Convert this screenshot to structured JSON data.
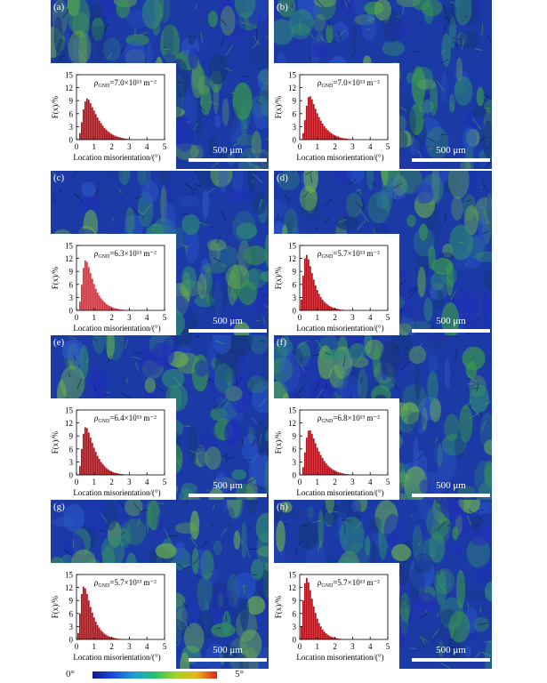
{
  "figure": {
    "scale_bar_label": "500 μm",
    "colorbar": {
      "min_label": "0°",
      "max_label": "5°"
    },
    "map_colors": [
      "#1f2fb7",
      "#2b55c6",
      "#16367e",
      "#2f8a72",
      "#3a9b4a",
      "#6db24a"
    ]
  },
  "chart_data": [
    {
      "type": "bar",
      "panel": "(a)",
      "density_label": "7.0×10¹³ m⁻²",
      "xlabel": "Location misorientation/(°)",
      "ylabel": "F(x)/%",
      "xlim": [
        0,
        5
      ],
      "ylim": [
        0,
        15
      ],
      "xticks": [
        "0",
        "1",
        "2",
        "3",
        "4",
        "5"
      ],
      "yticks": [
        "0",
        "3",
        "6",
        "9",
        "12",
        "15"
      ],
      "bar_color": "#b5121b",
      "bins": [
        0.2,
        0.3,
        0.4,
        0.5,
        0.6,
        0.7,
        0.8,
        0.9,
        1.0,
        1.1,
        1.2,
        1.3,
        1.4,
        1.5,
        1.6,
        1.7,
        1.8,
        1.9,
        2.0,
        2.1,
        2.2,
        2.3,
        2.4,
        2.5,
        2.6,
        2.7,
        2.8,
        2.9,
        3.0
      ],
      "values": [
        1.5,
        4.0,
        7.0,
        8.8,
        9.5,
        9.2,
        8.4,
        7.5,
        6.7,
        5.9,
        5.1,
        4.4,
        3.8,
        3.2,
        2.7,
        2.3,
        1.9,
        1.6,
        1.3,
        1.1,
        0.9,
        0.7,
        0.6,
        0.5,
        0.4,
        0.3,
        0.2,
        0.15,
        0.1
      ]
    },
    {
      "type": "bar",
      "panel": "(b)",
      "density_label": "7.0×10¹³ m⁻²",
      "xlabel": "Location misorientation/(°)",
      "ylabel": "F(x)/%",
      "xlim": [
        0,
        5
      ],
      "ylim": [
        0,
        15
      ],
      "xticks": [
        "0",
        "1",
        "2",
        "3",
        "4",
        "5"
      ],
      "yticks": [
        "0",
        "3",
        "6",
        "9",
        "12",
        "15"
      ],
      "bar_color": "#b5121b",
      "bins": [
        0.2,
        0.3,
        0.4,
        0.5,
        0.6,
        0.7,
        0.8,
        0.9,
        1.0,
        1.1,
        1.2,
        1.3,
        1.4,
        1.5,
        1.6,
        1.7,
        1.8,
        1.9,
        2.0,
        2.1,
        2.2,
        2.3,
        2.4,
        2.5,
        2.6,
        2.7,
        2.8,
        2.9,
        3.0
      ],
      "values": [
        1.5,
        4.5,
        7.8,
        9.8,
        10.0,
        9.3,
        8.2,
        7.1,
        6.1,
        5.2,
        4.4,
        3.7,
        3.1,
        2.6,
        2.2,
        1.8,
        1.5,
        1.2,
        1.0,
        0.8,
        0.7,
        0.5,
        0.4,
        0.3,
        0.3,
        0.2,
        0.15,
        0.1,
        0.1
      ]
    },
    {
      "type": "bar",
      "panel": "(c)",
      "density_label": "6.3×10¹³ m⁻²",
      "xlabel": "Location misorientation/(°)",
      "ylabel": "F(x)/%",
      "xlim": [
        0,
        5
      ],
      "ylim": [
        0,
        15
      ],
      "xticks": [
        "0",
        "1",
        "2",
        "3",
        "4",
        "5"
      ],
      "yticks": [
        "0",
        "3",
        "6",
        "9",
        "12",
        "15"
      ],
      "bar_color": "#e0303d",
      "bins": [
        0.2,
        0.3,
        0.4,
        0.5,
        0.6,
        0.7,
        0.8,
        0.9,
        1.0,
        1.1,
        1.2,
        1.3,
        1.4,
        1.5,
        1.6,
        1.7,
        1.8,
        1.9,
        2.0,
        2.1,
        2.2,
        2.3,
        2.4,
        2.5,
        2.6,
        2.7,
        2.8
      ],
      "values": [
        2.0,
        6.0,
        9.8,
        11.5,
        11.2,
        10.0,
        8.6,
        7.3,
        6.1,
        5.0,
        4.1,
        3.4,
        2.8,
        2.3,
        1.9,
        1.5,
        1.2,
        1.0,
        0.8,
        0.6,
        0.5,
        0.4,
        0.3,
        0.2,
        0.2,
        0.1,
        0.1
      ]
    },
    {
      "type": "bar",
      "panel": "(d)",
      "density_label": "5.7×10¹³ m⁻²",
      "xlabel": "Location misorientation/(°)",
      "ylabel": "F(x)/%",
      "xlim": [
        0,
        5
      ],
      "ylim": [
        0,
        15
      ],
      "xticks": [
        "0",
        "1",
        "2",
        "3",
        "4",
        "5"
      ],
      "yticks": [
        "0",
        "3",
        "6",
        "9",
        "12",
        "15"
      ],
      "bar_color": "#b5121b",
      "bins": [
        0.1,
        0.2,
        0.3,
        0.4,
        0.5,
        0.6,
        0.7,
        0.8,
        0.9,
        1.0,
        1.1,
        1.2,
        1.3,
        1.4,
        1.5,
        1.6,
        1.7,
        1.8,
        1.9,
        2.0,
        2.1,
        2.2,
        2.3,
        2.4,
        2.5
      ],
      "values": [
        2.5,
        8.0,
        12.0,
        12.8,
        11.8,
        10.2,
        8.6,
        7.1,
        5.8,
        4.7,
        3.8,
        3.1,
        2.5,
        2.0,
        1.6,
        1.3,
        1.0,
        0.8,
        0.6,
        0.5,
        0.4,
        0.3,
        0.2,
        0.15,
        0.1
      ]
    },
    {
      "type": "bar",
      "panel": "(e)",
      "density_label": "6.4×10¹³ m⁻²",
      "xlabel": "Location misorientation/(°)",
      "ylabel": "F(x)/%",
      "xlim": [
        0,
        5
      ],
      "ylim": [
        0,
        15
      ],
      "xticks": [
        "0",
        "1",
        "2",
        "3",
        "4",
        "5"
      ],
      "yticks": [
        "0",
        "3",
        "6",
        "9",
        "12",
        "15"
      ],
      "bar_color": "#b5121b",
      "bins": [
        0.2,
        0.3,
        0.4,
        0.5,
        0.6,
        0.7,
        0.8,
        0.9,
        1.0,
        1.1,
        1.2,
        1.3,
        1.4,
        1.5,
        1.6,
        1.7,
        1.8,
        1.9,
        2.0,
        2.1,
        2.2,
        2.3,
        2.4,
        2.5,
        2.6,
        2.7,
        2.8
      ],
      "values": [
        2.0,
        6.0,
        9.5,
        11.0,
        10.8,
        9.8,
        8.6,
        7.4,
        6.3,
        5.3,
        4.4,
        3.7,
        3.0,
        2.5,
        2.0,
        1.6,
        1.3,
        1.0,
        0.8,
        0.6,
        0.5,
        0.4,
        0.3,
        0.2,
        0.2,
        0.1,
        0.1
      ]
    },
    {
      "type": "bar",
      "panel": "(f)",
      "density_label": "6.8×10¹³ m⁻²",
      "xlabel": "Location misorientation/(°)",
      "ylabel": "F(x)/%",
      "xlim": [
        0,
        5
      ],
      "ylim": [
        0,
        15
      ],
      "xticks": [
        "0",
        "1",
        "2",
        "3",
        "4",
        "5"
      ],
      "yticks": [
        "0",
        "3",
        "6",
        "9",
        "12",
        "15"
      ],
      "bar_color": "#b5121b",
      "bins": [
        0.2,
        0.3,
        0.4,
        0.5,
        0.6,
        0.7,
        0.8,
        0.9,
        1.0,
        1.1,
        1.2,
        1.3,
        1.4,
        1.5,
        1.6,
        1.7,
        1.8,
        1.9,
        2.0,
        2.1,
        2.2,
        2.3,
        2.4,
        2.5,
        2.6,
        2.7,
        2.8,
        2.9
      ],
      "values": [
        1.8,
        5.2,
        8.6,
        10.2,
        10.3,
        9.5,
        8.4,
        7.3,
        6.3,
        5.4,
        4.6,
        3.9,
        3.2,
        2.7,
        2.2,
        1.8,
        1.5,
        1.2,
        1.0,
        0.8,
        0.6,
        0.5,
        0.4,
        0.3,
        0.2,
        0.2,
        0.1,
        0.1
      ]
    },
    {
      "type": "bar",
      "panel": "(g)",
      "density_label": "5.7×10¹³ m⁻²",
      "xlabel": "Location misorientation/(°)",
      "ylabel": "F(x)/%",
      "xlim": [
        0,
        5
      ],
      "ylim": [
        0,
        15
      ],
      "xticks": [
        "0",
        "1",
        "2",
        "3",
        "4",
        "5"
      ],
      "yticks": [
        "0",
        "3",
        "6",
        "9",
        "12",
        "15"
      ],
      "bar_color": "#b5121b",
      "bins": [
        0.1,
        0.2,
        0.3,
        0.4,
        0.5,
        0.6,
        0.7,
        0.8,
        0.9,
        1.0,
        1.1,
        1.2,
        1.3,
        1.4,
        1.5,
        1.6,
        1.7,
        1.8,
        1.9,
        2.0,
        2.1,
        2.2,
        2.3,
        2.4,
        2.5,
        2.6
      ],
      "values": [
        1.5,
        6.0,
        10.5,
        12.2,
        11.8,
        10.5,
        9.0,
        7.5,
        6.2,
        5.1,
        4.1,
        3.3,
        2.7,
        2.1,
        1.7,
        1.3,
        1.0,
        0.8,
        0.6,
        0.5,
        0.4,
        0.3,
        0.2,
        0.15,
        0.1,
        0.1
      ]
    },
    {
      "type": "bar",
      "panel": "(h)",
      "density_label": "5.7×10¹³ m⁻²",
      "xlabel": "Location misorientation/(°)",
      "ylabel": "F(x)/%",
      "xlim": [
        0,
        5
      ],
      "ylim": [
        0,
        15
      ],
      "xticks": [
        "0",
        "1",
        "2",
        "3",
        "4",
        "5"
      ],
      "yticks": [
        "0",
        "3",
        "6",
        "9",
        "12",
        "15"
      ],
      "bar_color": "#b5121b",
      "bins": [
        0.1,
        0.2,
        0.3,
        0.4,
        0.5,
        0.6,
        0.7,
        0.8,
        0.9,
        1.0,
        1.1,
        1.2,
        1.3,
        1.4,
        1.5,
        1.6,
        1.7,
        1.8,
        1.9,
        2.0,
        2.1,
        2.2,
        2.3,
        2.4,
        2.5
      ],
      "values": [
        3.0,
        9.0,
        13.0,
        14.2,
        13.2,
        11.4,
        9.4,
        7.6,
        6.1,
        4.8,
        3.8,
        3.0,
        2.3,
        1.8,
        1.4,
        1.1,
        0.8,
        0.6,
        0.5,
        0.4,
        0.3,
        0.2,
        0.15,
        0.1,
        0.1
      ]
    }
  ]
}
